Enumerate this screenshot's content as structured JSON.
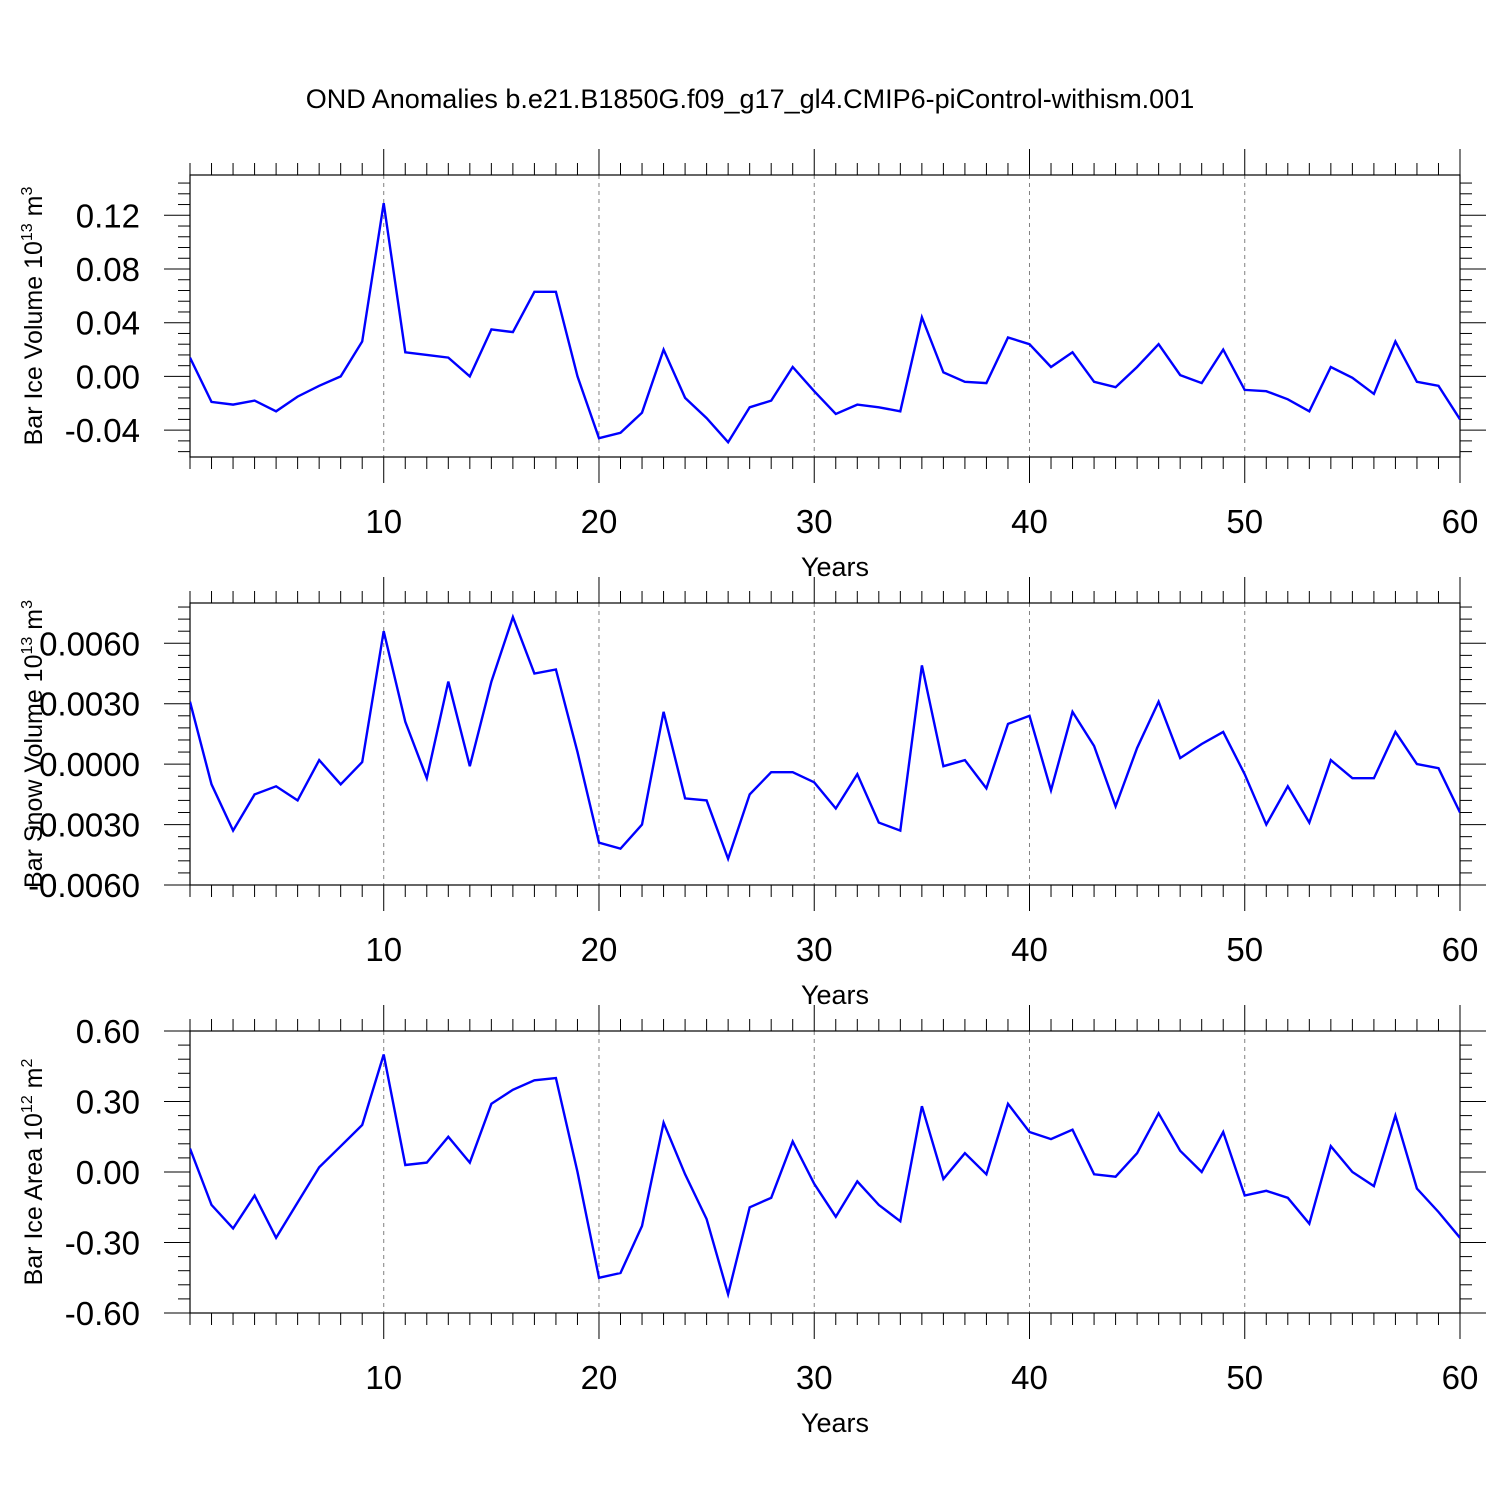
{
  "title": "OND Anomalies b.e21.B1850G.f09_g17_gl4.CMIP6-piControl-withism.001",
  "chart_data": [
    {
      "type": "line",
      "ylabel": "Bar Ice Volume 10",
      "ylabel_sup": "13",
      "ylabel_unit": " m",
      "ylabel_unit_sup": "3",
      "xlabel": "Years",
      "xlim": [
        1,
        60
      ],
      "ylim": [
        -0.06,
        0.15
      ],
      "xticks": [
        10,
        20,
        30,
        40,
        50,
        60
      ],
      "yticks": [
        -0.04,
        0.0,
        0.04,
        0.08,
        0.12
      ],
      "ytick_labels": [
        "-0.04",
        "0.00",
        "0.04",
        "0.08",
        "0.12"
      ],
      "line_color": "#0000ff",
      "grid": "vertical dashed at major x ticks",
      "x": [
        1,
        2,
        3,
        4,
        5,
        6,
        7,
        8,
        9,
        10,
        11,
        12,
        13,
        14,
        15,
        16,
        17,
        18,
        19,
        20,
        21,
        22,
        23,
        24,
        25,
        26,
        27,
        28,
        29,
        30,
        31,
        32,
        33,
        34,
        35,
        36,
        37,
        38,
        39,
        40,
        41,
        42,
        43,
        44,
        45,
        46,
        47,
        48,
        49,
        50,
        51,
        52,
        53,
        54,
        55,
        56,
        57,
        58,
        59,
        60
      ],
      "values": [
        0.014,
        -0.019,
        -0.021,
        -0.018,
        -0.026,
        -0.015,
        -0.007,
        0.0,
        0.026,
        0.129,
        0.018,
        0.016,
        0.014,
        0.0,
        0.035,
        0.033,
        0.063,
        0.063,
        0.0,
        -0.046,
        -0.042,
        -0.027,
        0.02,
        -0.016,
        -0.031,
        -0.049,
        -0.023,
        -0.018,
        0.007,
        -0.011,
        -0.028,
        -0.021,
        -0.023,
        -0.026,
        0.044,
        0.003,
        -0.004,
        -0.005,
        0.029,
        0.024,
        0.007,
        0.018,
        -0.004,
        -0.008,
        0.007,
        0.024,
        0.001,
        -0.005,
        0.02,
        -0.01,
        -0.011,
        -0.017,
        -0.026,
        0.007,
        -0.001,
        -0.013,
        0.026,
        -0.004,
        -0.007,
        -0.032
      ]
    },
    {
      "type": "line",
      "ylabel": "Bar Snow Volume 10",
      "ylabel_sup": "13",
      "ylabel_unit": " m",
      "ylabel_unit_sup": "3",
      "xlabel": "Years",
      "xlim": [
        1,
        60
      ],
      "ylim": [
        -0.006,
        0.008
      ],
      "xticks": [
        10,
        20,
        30,
        40,
        50,
        60
      ],
      "yticks": [
        -0.006,
        -0.003,
        0.0,
        0.003,
        0.006
      ],
      "ytick_labels": [
        "-0.0060",
        "-0.0030",
        "0.0000",
        "0.0030",
        "0.0060"
      ],
      "line_color": "#0000ff",
      "grid": "vertical dashed at major x ticks",
      "x": [
        1,
        2,
        3,
        4,
        5,
        6,
        7,
        8,
        9,
        10,
        11,
        12,
        13,
        14,
        15,
        16,
        17,
        18,
        19,
        20,
        21,
        22,
        23,
        24,
        25,
        26,
        27,
        28,
        29,
        30,
        31,
        32,
        33,
        34,
        35,
        36,
        37,
        38,
        39,
        40,
        41,
        42,
        43,
        44,
        45,
        46,
        47,
        48,
        49,
        50,
        51,
        52,
        53,
        54,
        55,
        56,
        57,
        58,
        59,
        60
      ],
      "values": [
        0.0031,
        -0.001,
        -0.0033,
        -0.0015,
        -0.0011,
        -0.0018,
        0.0002,
        -0.001,
        0.0001,
        0.0066,
        0.0021,
        -0.0007,
        0.0041,
        -0.0001,
        0.0041,
        0.0073,
        0.0045,
        0.0047,
        0.0006,
        -0.0039,
        -0.0042,
        -0.003,
        0.0026,
        -0.0017,
        -0.0018,
        -0.0047,
        -0.0015,
        -0.0004,
        -0.0004,
        -0.0009,
        -0.0022,
        -0.0005,
        -0.0029,
        -0.0033,
        0.0049,
        -0.0001,
        0.0002,
        -0.0012,
        0.002,
        0.0024,
        -0.0013,
        0.0026,
        0.0009,
        -0.0021,
        0.0008,
        0.0031,
        0.0003,
        0.001,
        0.0016,
        -0.0005,
        -0.003,
        -0.0011,
        -0.0029,
        0.0002,
        -0.0007,
        -0.0007,
        0.0016,
        0.0,
        -0.0002,
        -0.0024
      ]
    },
    {
      "type": "line",
      "ylabel": "Bar Ice Area 10",
      "ylabel_sup": "12",
      "ylabel_unit": " m",
      "ylabel_unit_sup": "2",
      "xlabel": "Years",
      "xlim": [
        1,
        60
      ],
      "ylim": [
        -0.6,
        0.6
      ],
      "xticks": [
        10,
        20,
        30,
        40,
        50,
        60
      ],
      "yticks": [
        -0.6,
        -0.3,
        0.0,
        0.3,
        0.6
      ],
      "ytick_labels": [
        "-0.60",
        "-0.30",
        "0.00",
        "0.30",
        "0.60"
      ],
      "line_color": "#0000ff",
      "grid": "vertical dashed at major x ticks",
      "x": [
        1,
        2,
        3,
        4,
        5,
        6,
        7,
        8,
        9,
        10,
        11,
        12,
        13,
        14,
        15,
        16,
        17,
        18,
        19,
        20,
        21,
        22,
        23,
        24,
        25,
        26,
        27,
        28,
        29,
        30,
        31,
        32,
        33,
        34,
        35,
        36,
        37,
        38,
        39,
        40,
        41,
        42,
        43,
        44,
        45,
        46,
        47,
        48,
        49,
        50,
        51,
        52,
        53,
        54,
        55,
        56,
        57,
        58,
        59,
        60
      ],
      "values": [
        0.1,
        -0.14,
        -0.24,
        -0.1,
        -0.28,
        -0.13,
        0.02,
        0.11,
        0.2,
        0.5,
        0.03,
        0.04,
        0.15,
        0.04,
        0.29,
        0.35,
        0.39,
        0.4,
        0.0,
        -0.45,
        -0.43,
        -0.23,
        0.21,
        -0.01,
        -0.2,
        -0.52,
        -0.15,
        -0.11,
        0.13,
        -0.05,
        -0.19,
        -0.04,
        -0.14,
        -0.21,
        0.28,
        -0.03,
        0.08,
        -0.01,
        0.29,
        0.17,
        0.14,
        0.18,
        -0.01,
        -0.02,
        0.08,
        0.25,
        0.09,
        0.0,
        0.17,
        -0.1,
        -0.08,
        -0.11,
        -0.22,
        0.11,
        0.0,
        -0.06,
        0.24,
        -0.07,
        -0.17,
        -0.28
      ]
    }
  ]
}
